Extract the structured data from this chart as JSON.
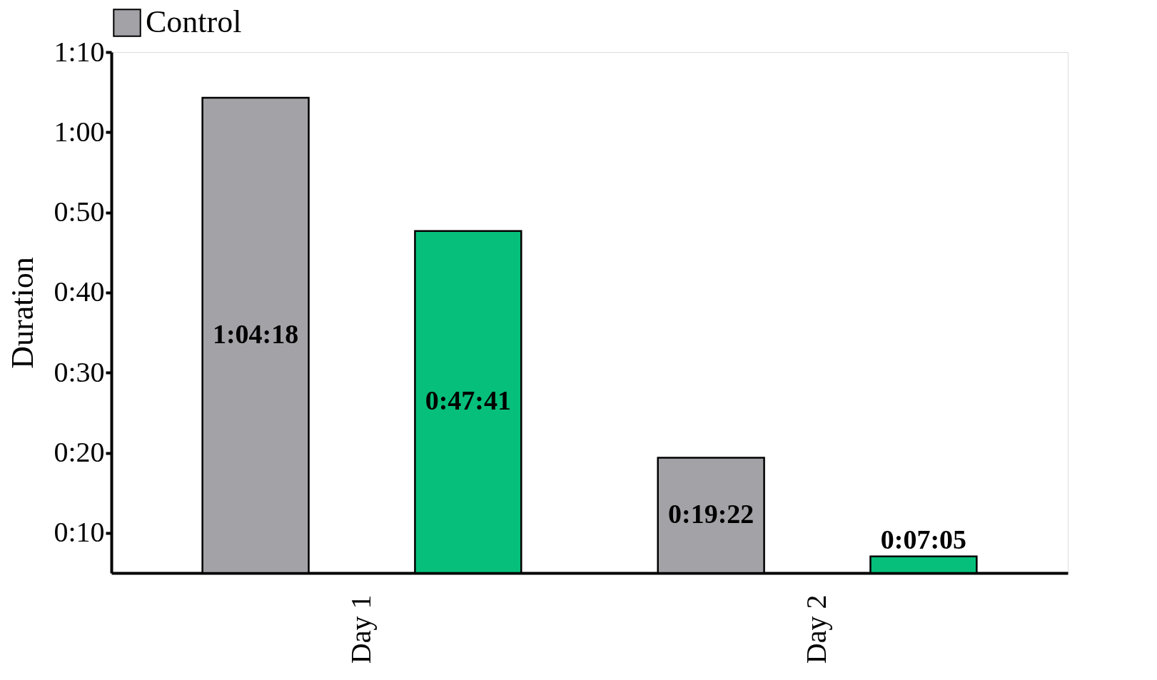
{
  "chart_data": {
    "type": "bar",
    "ylabel": "Duration",
    "categories": [
      "Day 1",
      "Day 2"
    ],
    "series": [
      {
        "name": "Control",
        "color": "#a3a2a7",
        "values": [
          64.3,
          19.37
        ],
        "value_labels": [
          "1:04:18",
          "0:19:22"
        ]
      },
      {
        "color": "#06bf7a",
        "values": [
          47.68,
          7.08
        ],
        "value_labels": [
          "0:47:41",
          "0:07:05"
        ]
      }
    ],
    "ylim": [
      5,
      70
    ],
    "yticks": [
      {
        "value": 10,
        "label": "0:10"
      },
      {
        "value": 20,
        "label": "0:20"
      },
      {
        "value": 30,
        "label": "0:30"
      },
      {
        "value": 40,
        "label": "0:40"
      },
      {
        "value": 50,
        "label": "0:50"
      },
      {
        "value": 60,
        "label": "1:00"
      },
      {
        "value": 70,
        "label": "1:10"
      }
    ],
    "legend": "top"
  }
}
